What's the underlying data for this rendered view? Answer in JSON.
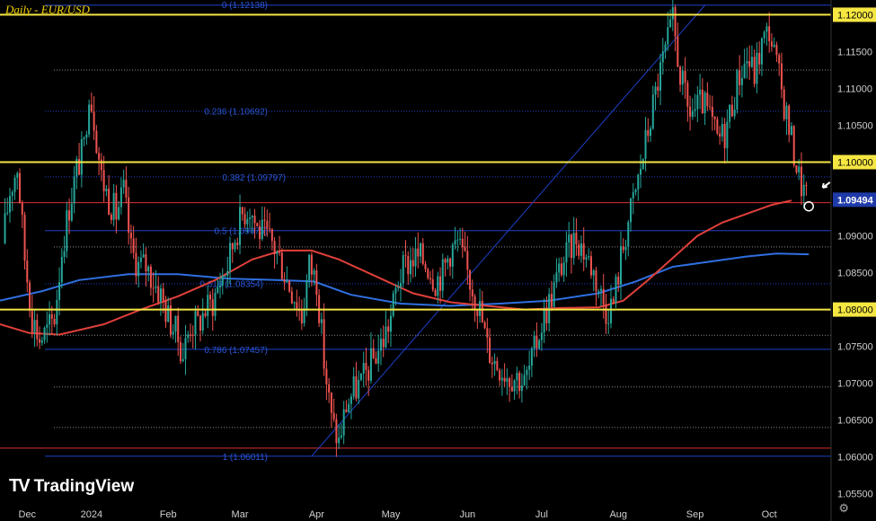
{
  "title": "Daily - EUR/USD",
  "brand": "TradingView",
  "brand_logo": "TV",
  "settings_icon": "gear-icon",
  "chart_data": {
    "type": "candlestick",
    "y_range": [
      1.0535,
      1.122
    ],
    "y_ticks": [
      "1.12000",
      "1.11500",
      "1.11000",
      "1.10500",
      "1.10000",
      "1.09500",
      "1.09000",
      "1.08500",
      "1.08000",
      "1.07500",
      "1.07000",
      "1.06500",
      "1.06000",
      "1.05500"
    ],
    "x_ticks": [
      {
        "label": "Dec",
        "day": 9
      },
      {
        "label": "2024",
        "day": 35
      },
      {
        "label": "Feb",
        "day": 66
      },
      {
        "label": "Mar",
        "day": 95
      },
      {
        "label": "Apr",
        "day": 126
      },
      {
        "label": "May",
        "day": 156
      },
      {
        "label": "Jun",
        "day": 187
      },
      {
        "label": "Jul",
        "day": 217
      },
      {
        "label": "Aug",
        "day": 248
      },
      {
        "label": "Sep",
        "day": 279
      },
      {
        "label": "Oct",
        "day": 309
      }
    ],
    "day_range": [
      -2,
      334
    ],
    "current_price": {
      "label": "1.09494",
      "value": 1.0949
    },
    "horizontal_levels": [
      {
        "value": 1.12,
        "label": "1.12000",
        "color": "#f5e642",
        "weight": "major"
      },
      {
        "value": 1.1,
        "label": "1.10000",
        "color": "#f5e642",
        "weight": "major"
      },
      {
        "value": 1.08,
        "label": "1.08000",
        "color": "#f5e642",
        "weight": "major"
      },
      {
        "value": 1.1213,
        "label": "",
        "color": "#1e40c8",
        "weight": "line"
      },
      {
        "value": 1.1069,
        "label": "",
        "color": "#1e40c8",
        "weight": "dotted"
      },
      {
        "value": 1.098,
        "label": "",
        "color": "#1e40c8",
        "weight": "dotted"
      },
      {
        "value": 1.0907,
        "label": "",
        "color": "#1e40c8",
        "weight": "line"
      },
      {
        "value": 1.0835,
        "label": "",
        "color": "#1e40c8",
        "weight": "dotted"
      },
      {
        "value": 1.0746,
        "label": "",
        "color": "#1e40c8",
        "weight": "line"
      },
      {
        "value": 1.0601,
        "label": "",
        "color": "#1e40c8",
        "weight": "line"
      },
      {
        "value": 1.0612,
        "label": "",
        "color": "#d93030",
        "weight": "line"
      },
      {
        "value": 1.0945,
        "label": "",
        "color": "#d93030",
        "weight": "line"
      }
    ],
    "fibonacci": [
      {
        "label": "0 (1.12138)",
        "value": 1.12138
      },
      {
        "label": "0.236 (1.10692)",
        "value": 1.10692
      },
      {
        "label": "0.382 (1.09797)",
        "value": 1.09797
      },
      {
        "label": "0.5 (1.09075)",
        "value": 1.09075
      },
      {
        "label": "0.618 (1.08354)",
        "value": 1.08354
      },
      {
        "label": "0.786 (1.07457)",
        "value": 1.07457
      },
      {
        "label": "1 (1.06011)",
        "value": 1.06011
      }
    ],
    "trend_line": {
      "from": {
        "day": 124,
        "value": 1.0601
      },
      "to": {
        "day": 283,
        "value": 1.1213
      }
    },
    "ma_red": [
      [
        -2,
        1.078
      ],
      [
        10,
        1.0768
      ],
      [
        22,
        1.0766
      ],
      [
        40,
        1.078
      ],
      [
        55,
        1.08
      ],
      [
        70,
        1.0818
      ],
      [
        85,
        1.084
      ],
      [
        100,
        1.0868
      ],
      [
        112,
        1.088
      ],
      [
        124,
        1.088
      ],
      [
        135,
        1.0868
      ],
      [
        150,
        1.0845
      ],
      [
        165,
        1.0822
      ],
      [
        180,
        1.081
      ],
      [
        195,
        1.0805
      ],
      [
        210,
        1.08
      ],
      [
        225,
        1.0802
      ],
      [
        240,
        1.0803
      ],
      [
        250,
        1.0812
      ],
      [
        260,
        1.084
      ],
      [
        270,
        1.087
      ],
      [
        280,
        1.09
      ],
      [
        290,
        1.0918
      ],
      [
        300,
        1.093
      ],
      [
        310,
        1.0942
      ],
      [
        318,
        1.0948
      ]
    ],
    "ma_blue": [
      [
        -2,
        1.0812
      ],
      [
        15,
        1.0825
      ],
      [
        30,
        1.084
      ],
      [
        50,
        1.0848
      ],
      [
        70,
        1.0848
      ],
      [
        90,
        1.0842
      ],
      [
        110,
        1.084
      ],
      [
        125,
        1.0838
      ],
      [
        140,
        1.082
      ],
      [
        160,
        1.0808
      ],
      [
        180,
        1.0805
      ],
      [
        200,
        1.0808
      ],
      [
        220,
        1.0812
      ],
      [
        240,
        1.0822
      ],
      [
        255,
        1.0838
      ],
      [
        270,
        1.0858
      ],
      [
        285,
        1.0865
      ],
      [
        300,
        1.0872
      ],
      [
        312,
        1.0876
      ],
      [
        325,
        1.0875
      ]
    ],
    "path": [
      [
        0,
        1.089
      ],
      [
        3,
        1.096
      ],
      [
        6,
        1.0995
      ],
      [
        9,
        1.087
      ],
      [
        12,
        1.079
      ],
      [
        15,
        1.076
      ],
      [
        18,
        1.077
      ],
      [
        21,
        1.079
      ],
      [
        24,
        1.088
      ],
      [
        27,
        1.094
      ],
      [
        30,
        1.099
      ],
      [
        33,
        1.102
      ],
      [
        35,
        1.11
      ],
      [
        37,
        1.106
      ],
      [
        40,
        1.098
      ],
      [
        43,
        1.095
      ],
      [
        46,
        1.093
      ],
      [
        49,
        1.096
      ],
      [
        52,
        1.088
      ],
      [
        55,
        1.086
      ],
      [
        58,
        1.086
      ],
      [
        61,
        1.084
      ],
      [
        64,
        1.082
      ],
      [
        67,
        1.079
      ],
      [
        70,
        1.077
      ],
      [
        73,
        1.074
      ],
      [
        76,
        1.078
      ],
      [
        79,
        1.078
      ],
      [
        82,
        1.08
      ],
      [
        85,
        1.081
      ],
      [
        88,
        1.084
      ],
      [
        91,
        1.086
      ],
      [
        94,
        1.09
      ],
      [
        97,
        1.093
      ],
      [
        100,
        1.094
      ],
      [
        103,
        1.091
      ],
      [
        106,
        1.09
      ],
      [
        109,
        1.089
      ],
      [
        112,
        1.087
      ],
      [
        115,
        1.084
      ],
      [
        118,
        1.082
      ],
      [
        121,
        1.079
      ],
      [
        124,
        1.086
      ],
      [
        127,
        1.084
      ],
      [
        130,
        1.073
      ],
      [
        133,
        1.065
      ],
      [
        136,
        1.062
      ],
      [
        139,
        1.067
      ],
      [
        142,
        1.069
      ],
      [
        145,
        1.07
      ],
      [
        148,
        1.072
      ],
      [
        151,
        1.074
      ],
      [
        154,
        1.076
      ],
      [
        157,
        1.079
      ],
      [
        160,
        1.084
      ],
      [
        163,
        1.086
      ],
      [
        166,
        1.087
      ],
      [
        169,
        1.087
      ],
      [
        172,
        1.086
      ],
      [
        175,
        1.084
      ],
      [
        178,
        1.085
      ],
      [
        181,
        1.088
      ],
      [
        184,
        1.089
      ],
      [
        187,
        1.086
      ],
      [
        190,
        1.083
      ],
      [
        193,
        1.08
      ],
      [
        196,
        1.075
      ],
      [
        199,
        1.073
      ],
      [
        202,
        1.072
      ],
      [
        205,
        1.071
      ],
      [
        208,
        1.071
      ],
      [
        211,
        1.07
      ],
      [
        214,
        1.073
      ],
      [
        217,
        1.077
      ],
      [
        220,
        1.08
      ],
      [
        223,
        1.083
      ],
      [
        226,
        1.086
      ],
      [
        229,
        1.088
      ],
      [
        232,
        1.09
      ],
      [
        235,
        1.088
      ],
      [
        238,
        1.086
      ],
      [
        241,
        1.083
      ],
      [
        244,
        1.08
      ],
      [
        247,
        1.081
      ],
      [
        250,
        1.087
      ],
      [
        253,
        1.092
      ],
      [
        256,
        1.096
      ],
      [
        259,
        1.101
      ],
      [
        262,
        1.106
      ],
      [
        265,
        1.111
      ],
      [
        268,
        1.115
      ],
      [
        271,
        1.119
      ],
      [
        274,
        1.112
      ],
      [
        277,
        1.107
      ],
      [
        280,
        1.107
      ],
      [
        283,
        1.108
      ],
      [
        286,
        1.106
      ],
      [
        289,
        1.103
      ],
      [
        292,
        1.104
      ],
      [
        295,
        1.108
      ],
      [
        298,
        1.112
      ],
      [
        301,
        1.114
      ],
      [
        304,
        1.112
      ],
      [
        307,
        1.116
      ],
      [
        310,
        1.118
      ],
      [
        313,
        1.113
      ],
      [
        316,
        1.108
      ],
      [
        319,
        1.103
      ],
      [
        322,
        1.098
      ],
      [
        325,
        1.0949
      ]
    ],
    "annotations": [
      {
        "type": "circle",
        "day": 325,
        "value": 1.094,
        "color": "#ffffff"
      },
      {
        "type": "arrow",
        "day": 327,
        "value": 1.0958,
        "color": "#ffffff"
      }
    ]
  }
}
